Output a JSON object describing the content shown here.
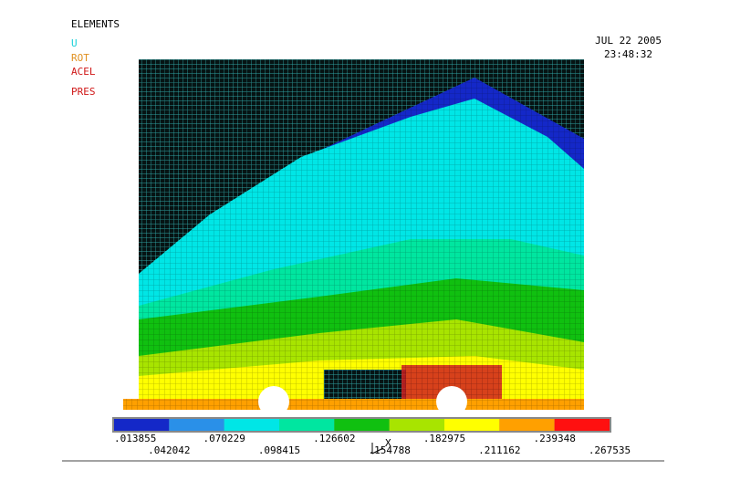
{
  "header": {
    "title": "ELEMENTS",
    "labels": [
      "U",
      "ROT",
      "ACEL",
      "PRES"
    ],
    "date": "JUL 22 2005",
    "time": "23:48:32"
  },
  "legend": {
    "colors": [
      "#1428c8",
      "#2a90e8",
      "#00e6e6",
      "#00e6a0",
      "#10c010",
      "#a8e400",
      "#ffff00",
      "#ffa000",
      "#ff1010"
    ],
    "values": [
      ".013855",
      ".042042",
      ".070229",
      ".098415",
      ".126602",
      ".154788",
      ".182975",
      ".211162",
      ".239348",
      ".267535"
    ]
  },
  "triad": "X"
}
